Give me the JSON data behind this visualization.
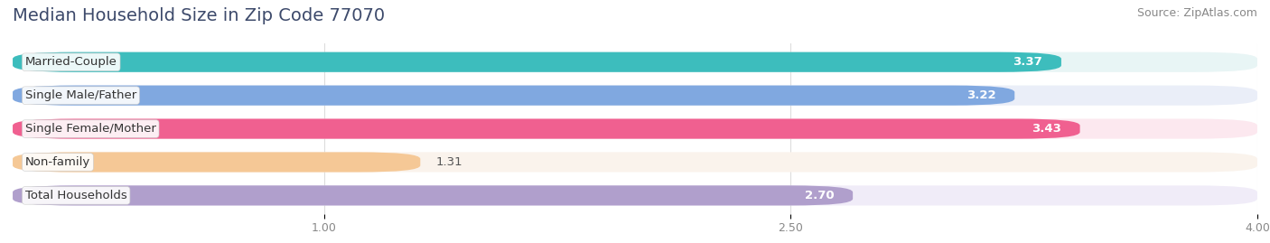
{
  "title": "Median Household Size in Zip Code 77070",
  "source": "Source: ZipAtlas.com",
  "categories": [
    "Married-Couple",
    "Single Male/Father",
    "Single Female/Mother",
    "Non-family",
    "Total Households"
  ],
  "values": [
    3.37,
    3.22,
    3.43,
    1.31,
    2.7
  ],
  "bar_colors": [
    "#3dbdbd",
    "#80a8e0",
    "#f06090",
    "#f5c896",
    "#b09fcc"
  ],
  "bar_background_colors": [
    "#e8f5f5",
    "#eaeef8",
    "#fce8ef",
    "#faf3ec",
    "#f0ecf8"
  ],
  "xlim_data": [
    0.0,
    4.0
  ],
  "xticks": [
    1.0,
    2.5,
    4.0
  ],
  "title_fontsize": 14,
  "label_fontsize": 9.5,
  "value_fontsize": 9.5,
  "source_fontsize": 9,
  "background_color": "#ffffff",
  "title_color": "#3d4a6b",
  "value_label_outside": [
    false,
    false,
    false,
    true,
    false
  ]
}
